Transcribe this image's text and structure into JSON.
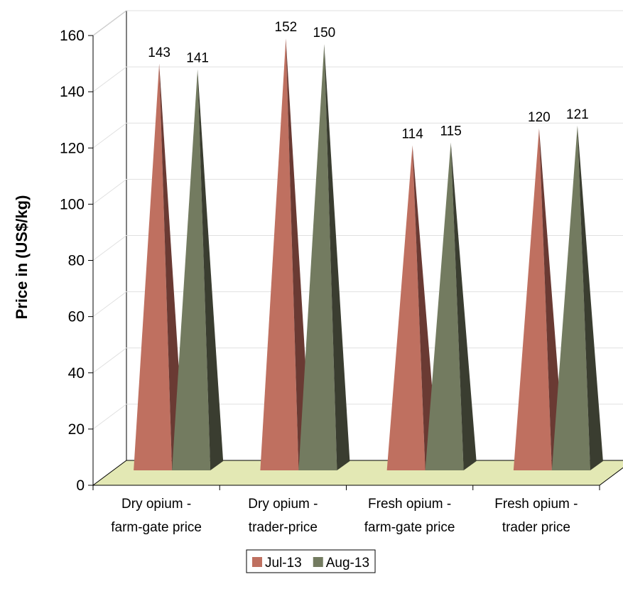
{
  "chart_data": {
    "type": "bar",
    "style": "3d-pyramid",
    "ylabel": "Price in  (US$/kg)",
    "xlabel": "",
    "title": "",
    "ylim": [
      0,
      160
    ],
    "yticks": [
      "0",
      "20",
      "40",
      "60",
      "80",
      "100",
      "120",
      "140",
      "160"
    ],
    "grid": true,
    "legend_position": "bottom",
    "categories": [
      [
        "Dry opium -",
        "farm-gate price"
      ],
      [
        "Dry opium -",
        "trader-price"
      ],
      [
        "Fresh opium -",
        "farm-gate price"
      ],
      [
        "Fresh opium -",
        "trader price"
      ]
    ],
    "series": [
      {
        "name": "Jul-13",
        "values": [
          143,
          152,
          114,
          120
        ],
        "color": "#bf7060",
        "shade": "#6a3a33"
      },
      {
        "name": "Aug-13",
        "values": [
          141,
          150,
          115,
          121
        ],
        "color": "#737b60",
        "shade": "#3a3d30"
      }
    ],
    "floor_color": "#e3e8b4",
    "grid_color": "#e0e0e0"
  }
}
